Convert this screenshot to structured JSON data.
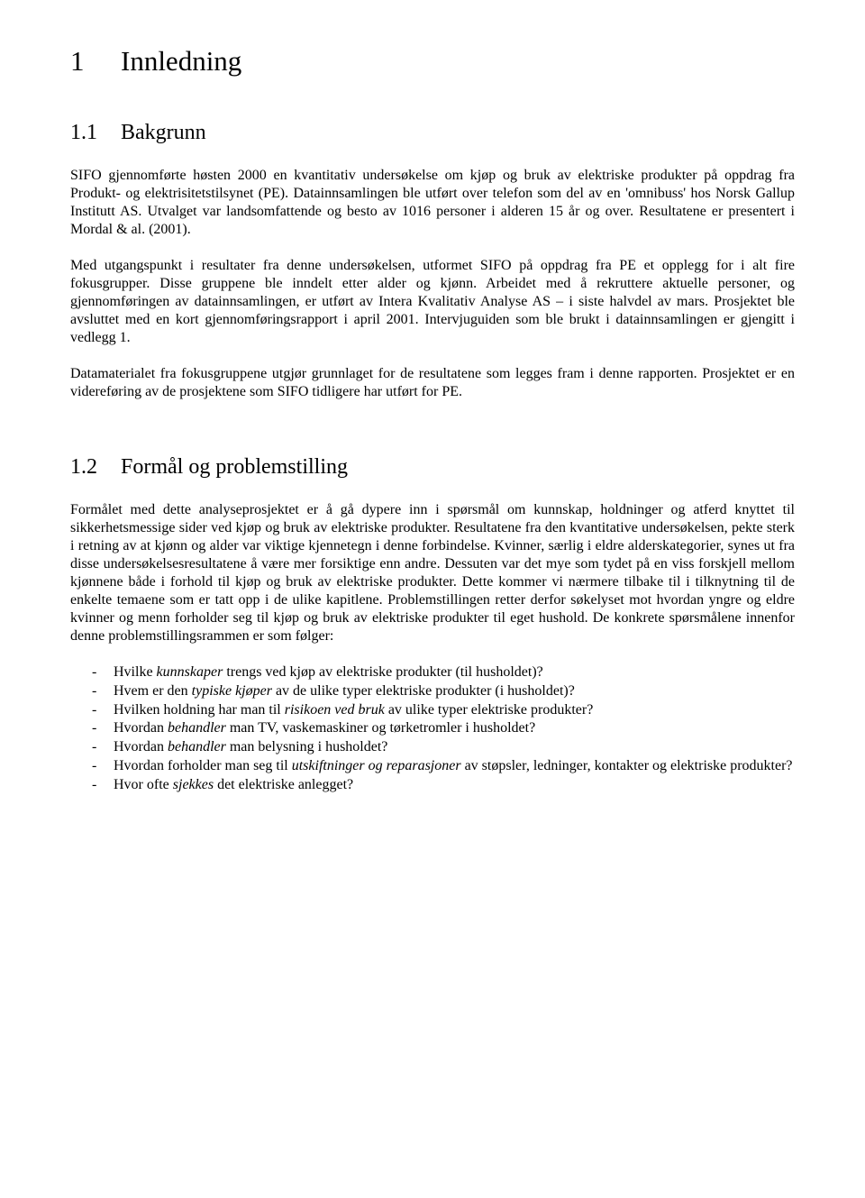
{
  "heading1": {
    "num": "1",
    "title": "Innledning"
  },
  "section1": {
    "heading": {
      "num": "1.1",
      "title": "Bakgrunn"
    },
    "para1": "SIFO gjennomførte høsten 2000 en kvantitativ undersøkelse om kjøp og bruk av elektriske produkter på oppdrag fra Produkt- og elektrisitetstilsynet (PE). Datainnsamlingen ble utført over telefon som del av en 'omnibuss' hos Norsk Gallup Institutt AS. Utvalget var landsomfattende og besto av 1016 personer i alderen 15 år og over. Resultatene er presentert i Mordal & al. (2001).",
    "para2": "Med utgangspunkt i resultater fra denne undersøkelsen, utformet SIFO på oppdrag fra PE et opplegg for i alt fire fokusgrupper. Disse gruppene ble inndelt etter alder og kjønn. Arbeidet med å rekruttere aktuelle personer, og gjennomføringen av datainnsamlingen, er utført av Intera Kvalitativ Analyse AS – i siste halvdel av mars. Prosjektet ble avsluttet med en kort gjennomføringsrapport i april 2001. Intervjuguiden som ble brukt i datainnsamlingen er gjengitt i vedlegg 1.",
    "para3": "Datamaterialet fra fokusgruppene utgjør grunnlaget for de resultatene som legges fram i denne rapporten. Prosjektet er en videreføring av de prosjektene som SIFO tidligere har utført for PE."
  },
  "section2": {
    "heading": {
      "num": "1.2",
      "title": "Formål og problemstilling"
    },
    "para1": "Formålet med dette analyseprosjektet er å gå dypere inn i spørsmål om kunnskap, holdninger og atferd knyttet til sikkerhetsmessige sider ved kjøp og bruk av elektriske produkter. Resultatene fra den kvantitative undersøkelsen, pekte sterk i retning av at kjønn og alder var viktige kjennetegn i denne forbindelse. Kvinner, særlig i eldre alderskategorier, synes ut fra disse undersøkelsesresultatene å være mer forsiktige enn andre. Dessuten var det mye som tydet på en viss forskjell mellom kjønnene både i forhold til kjøp og bruk av elektriske produkter. Dette kommer vi nærmere tilbake til i tilknytning til de enkelte temaene som er tatt opp i de ulike kapitlene. Problemstillingen retter derfor søkelyset mot hvordan yngre og eldre kvinner og menn forholder seg til kjøp og bruk av elektriske produkter til eget hushold. De konkrete spørsmålene innenfor denne problemstillingsrammen er som følger:",
    "bullets": [
      {
        "pre": "Hvilke ",
        "em": "kunnskaper",
        "post": " trengs ved kjøp av elektriske produkter (til husholdet)?"
      },
      {
        "pre": "Hvem er den ",
        "em": "typiske kjøper",
        "post": " av de ulike typer elektriske produkter (i husholdet)?"
      },
      {
        "pre": "Hvilken holdning har man til ",
        "em": "risikoen ved bruk",
        "post": " av ulike typer elektriske produkter?"
      },
      {
        "pre": "Hvordan ",
        "em": "behandler",
        "post": " man TV, vaskemaskiner og tørketromler i husholdet?"
      },
      {
        "pre": "Hvordan ",
        "em": "behandler",
        "post": " man belysning i husholdet?"
      },
      {
        "pre": "Hvordan forholder man seg til ",
        "em": "utskiftninger og reparasjoner",
        "post": " av støpsler, ledninger, kontakter og elektriske produkter?"
      },
      {
        "pre": "Hvor ofte ",
        "em": "sjekkes",
        "post": " det elektriske anlegget?"
      }
    ]
  }
}
